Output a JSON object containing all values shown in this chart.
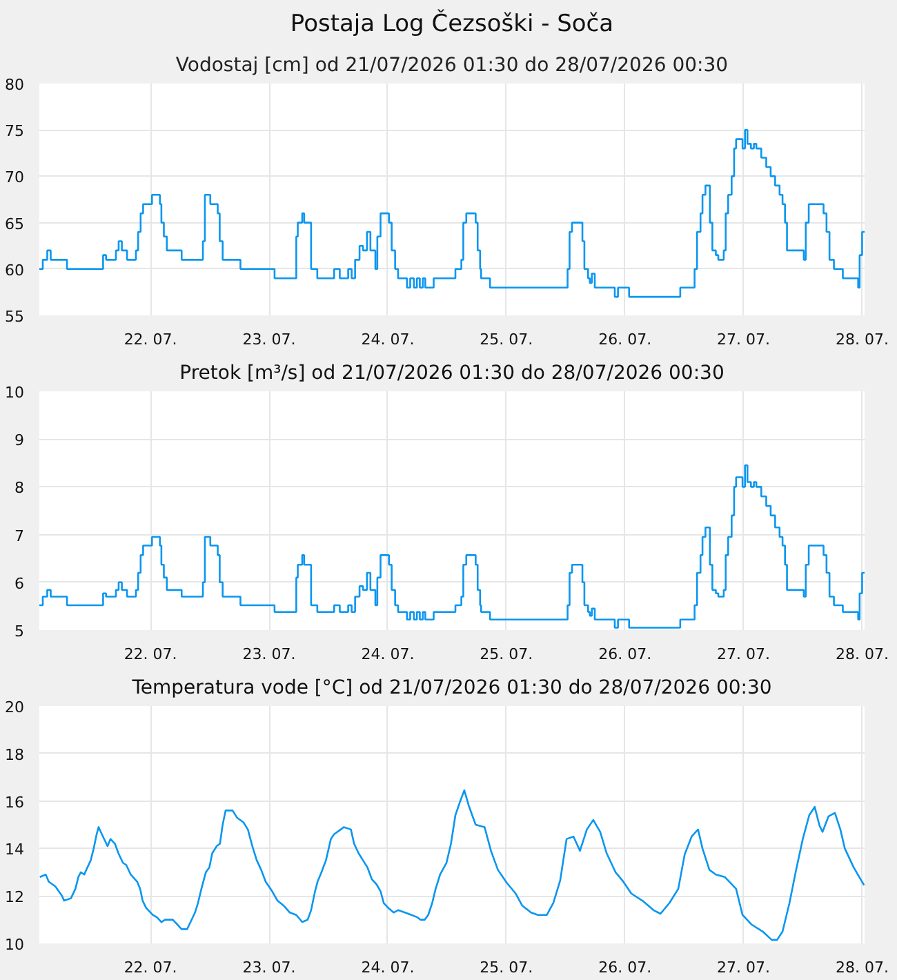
{
  "chart_data": [
    {
      "type": "step",
      "title": "Postaja Log Čezsoški - Soča",
      "subtitle": "Vodostaj [cm] od 21/07/2026 01:30 do 28/07/2026 00:30",
      "color": "#0a96f0",
      "grid": true,
      "xlim": [
        "2026-07-21T01:30",
        "2026-07-28T00:30"
      ],
      "ylim": [
        55,
        80
      ],
      "yticks": [
        55,
        60,
        65,
        70,
        75,
        80
      ],
      "xticks": [
        {
          "value": "2026-07-22",
          "label": "22. 07."
        },
        {
          "value": "2026-07-23",
          "label": "23. 07."
        },
        {
          "value": "2026-07-24",
          "label": "24. 07."
        },
        {
          "value": "2026-07-25",
          "label": "25. 07."
        },
        {
          "value": "2026-07-26",
          "label": "26. 07."
        },
        {
          "value": "2026-07-27",
          "label": "27. 07."
        },
        {
          "value": "2026-07-28",
          "label": "28. 07."
        }
      ],
      "x": [
        "2026-07-21T01:30",
        "2026-07-21T02:12",
        "2026-07-21T03:06",
        "2026-07-21T03:48",
        "2026-07-21T07:06",
        "2026-07-21T14:24",
        "2026-07-21T15:00",
        "2026-07-21T17:00",
        "2026-07-21T17:33",
        "2026-07-21T18:12",
        "2026-07-21T19:15",
        "2026-07-21T21:03",
        "2026-07-21T21:30",
        "2026-07-21T22:00",
        "2026-07-21T22:30",
        "2026-07-22T00:18",
        "2026-07-22T01:54",
        "2026-07-22T02:12",
        "2026-07-22T02:42",
        "2026-07-22T03:18",
        "2026-07-22T06:18",
        "2026-07-22T10:36",
        "2026-07-22T11:00",
        "2026-07-22T12:06",
        "2026-07-22T13:36",
        "2026-07-22T14:00",
        "2026-07-22T14:36",
        "2026-07-22T18:12",
        "2026-07-23T01:06",
        "2026-07-23T05:30",
        "2026-07-23T05:48",
        "2026-07-23T06:42",
        "2026-07-23T07:06",
        "2026-07-23T08:30",
        "2026-07-23T09:45",
        "2026-07-23T13:10",
        "2026-07-23T14:18",
        "2026-07-23T16:00",
        "2026-07-23T16:42",
        "2026-07-23T17:24",
        "2026-07-23T18:18",
        "2026-07-23T19:00",
        "2026-07-23T19:48",
        "2026-07-23T20:30",
        "2026-07-23T21:30",
        "2026-07-23T21:54",
        "2026-07-23T22:33",
        "2026-07-24T00:15",
        "2026-07-24T00:48",
        "2026-07-24T01:30",
        "2026-07-24T02:06",
        "2026-07-24T03:54",
        "2026-07-24T04:33",
        "2026-07-24T05:18",
        "2026-07-24T05:54",
        "2026-07-24T06:30",
        "2026-07-24T07:06",
        "2026-07-24T07:36",
        "2026-07-24T09:18",
        "2026-07-24T13:42",
        "2026-07-24T14:54",
        "2026-07-24T15:18",
        "2026-07-24T15:54",
        "2026-07-24T17:48",
        "2026-07-24T18:12",
        "2026-07-24T18:42",
        "2026-07-24T18:54",
        "2026-07-24T20:42",
        "2026-07-25T12:24",
        "2026-07-25T12:48",
        "2026-07-25T13:18",
        "2026-07-25T15:24",
        "2026-07-25T15:48",
        "2026-07-25T16:33",
        "2026-07-25T16:54",
        "2026-07-25T17:18",
        "2026-07-25T17:54",
        "2026-07-25T21:57",
        "2026-07-25T22:36",
        "2026-07-26T00:51",
        "2026-07-26T11:12",
        "2026-07-26T14:06",
        "2026-07-26T14:36",
        "2026-07-26T15:18",
        "2026-07-26T15:42",
        "2026-07-26T16:18",
        "2026-07-26T17:12",
        "2026-07-26T17:42",
        "2026-07-26T18:24",
        "2026-07-26T18:54",
        "2026-07-26T20:00",
        "2026-07-26T20:24",
        "2026-07-26T20:54",
        "2026-07-26T21:36",
        "2026-07-26T22:06",
        "2026-07-26T22:30",
        "2026-07-26T23:48",
        "2026-07-27T00:18",
        "2026-07-27T00:48",
        "2026-07-27T01:30",
        "2026-07-27T02:06",
        "2026-07-27T02:36",
        "2026-07-27T03:36",
        "2026-07-27T04:36",
        "2026-07-27T05:30",
        "2026-07-27T06:24",
        "2026-07-27T07:18",
        "2026-07-27T07:54",
        "2026-07-27T08:24",
        "2026-07-27T08:48",
        "2026-07-27T12:12",
        "2026-07-27T12:36",
        "2026-07-27T13:12",
        "2026-07-27T16:12",
        "2026-07-27T16:48",
        "2026-07-27T17:24",
        "2026-07-27T18:18",
        "2026-07-27T20:06",
        "2026-07-27T23:12",
        "2026-07-27T23:30",
        "2026-07-28T00:00",
        "2026-07-28T00:30"
      ],
      "values": [
        60,
        61,
        62,
        61,
        60,
        61.5,
        61,
        62,
        63,
        62,
        61,
        62,
        64,
        66,
        67,
        68,
        67,
        65,
        63.5,
        62,
        61,
        63,
        68,
        67,
        66,
        63,
        61,
        60,
        59,
        63.5,
        65,
        66,
        65,
        60,
        59,
        60,
        59,
        60,
        59,
        61,
        62.5,
        62,
        64,
        62,
        60,
        63.5,
        66,
        65,
        62,
        60,
        59,
        58,
        59,
        58,
        59,
        58,
        59,
        58,
        59,
        60,
        61,
        65,
        66,
        65,
        62,
        60,
        59,
        58,
        60,
        64,
        65,
        63,
        60,
        59,
        58.5,
        59.5,
        58,
        57,
        58,
        57,
        58,
        60,
        64,
        66,
        68,
        69,
        65,
        62,
        61.5,
        61,
        62,
        66,
        68,
        70,
        73,
        74,
        73,
        75,
        73.5,
        73,
        73.5,
        73,
        72,
        71,
        70,
        69,
        68,
        67,
        65,
        62,
        61,
        65,
        67,
        66,
        64,
        61,
        60,
        59,
        58,
        61.5,
        64,
        64
      ]
    },
    {
      "type": "step",
      "title": "Pretok [m³/s] od 21/07/2026 01:30 do 28/07/2026 00:30",
      "color": "#0a96f0",
      "grid": true,
      "xlim": [
        "2026-07-21T01:30",
        "2026-07-28T00:30"
      ],
      "ylim": [
        5,
        10
      ],
      "yticks": [
        5,
        6,
        7,
        8,
        9,
        10
      ],
      "xticks": [
        {
          "value": "2026-07-22",
          "label": "22. 07."
        },
        {
          "value": "2026-07-23",
          "label": "23. 07."
        },
        {
          "value": "2026-07-24",
          "label": "24. 07."
        },
        {
          "value": "2026-07-25",
          "label": "25. 07."
        },
        {
          "value": "2026-07-26",
          "label": "26. 07."
        },
        {
          "value": "2026-07-27",
          "label": "27. 07."
        },
        {
          "value": "2026-07-28",
          "label": "28. 07."
        }
      ],
      "x": [
        "2026-07-21T01:30",
        "2026-07-21T02:12",
        "2026-07-21T03:06",
        "2026-07-21T03:48",
        "2026-07-21T07:06",
        "2026-07-21T14:24",
        "2026-07-21T15:00",
        "2026-07-21T17:00",
        "2026-07-21T17:33",
        "2026-07-21T18:12",
        "2026-07-21T19:15",
        "2026-07-21T21:03",
        "2026-07-21T21:30",
        "2026-07-21T22:00",
        "2026-07-21T22:30",
        "2026-07-22T00:18",
        "2026-07-22T01:54",
        "2026-07-22T02:12",
        "2026-07-22T02:42",
        "2026-07-22T03:18",
        "2026-07-22T06:18",
        "2026-07-22T10:36",
        "2026-07-22T11:00",
        "2026-07-22T12:06",
        "2026-07-22T13:36",
        "2026-07-22T14:00",
        "2026-07-22T14:36",
        "2026-07-22T18:12",
        "2026-07-23T01:06",
        "2026-07-23T05:30",
        "2026-07-23T05:48",
        "2026-07-23T06:42",
        "2026-07-23T07:06",
        "2026-07-23T08:30",
        "2026-07-23T09:45",
        "2026-07-23T13:10",
        "2026-07-23T14:18",
        "2026-07-23T16:00",
        "2026-07-23T16:42",
        "2026-07-23T17:24",
        "2026-07-23T18:18",
        "2026-07-23T19:00",
        "2026-07-23T19:48",
        "2026-07-23T20:30",
        "2026-07-23T21:30",
        "2026-07-23T21:54",
        "2026-07-23T22:33",
        "2026-07-24T00:15",
        "2026-07-24T00:48",
        "2026-07-24T01:30",
        "2026-07-24T02:06",
        "2026-07-24T03:54",
        "2026-07-24T04:33",
        "2026-07-24T05:18",
        "2026-07-24T05:54",
        "2026-07-24T06:30",
        "2026-07-24T07:06",
        "2026-07-24T07:36",
        "2026-07-24T09:18",
        "2026-07-24T13:42",
        "2026-07-24T14:54",
        "2026-07-24T15:18",
        "2026-07-24T15:54",
        "2026-07-24T17:48",
        "2026-07-24T18:12",
        "2026-07-24T18:42",
        "2026-07-24T18:54",
        "2026-07-24T20:42",
        "2026-07-25T12:24",
        "2026-07-25T12:48",
        "2026-07-25T13:18",
        "2026-07-25T15:24",
        "2026-07-25T15:48",
        "2026-07-25T16:33",
        "2026-07-25T16:54",
        "2026-07-25T17:18",
        "2026-07-25T17:54",
        "2026-07-25T21:57",
        "2026-07-25T22:36",
        "2026-07-26T00:51",
        "2026-07-26T11:12",
        "2026-07-26T14:06",
        "2026-07-26T14:36",
        "2026-07-26T15:18",
        "2026-07-26T15:42",
        "2026-07-26T16:18",
        "2026-07-26T17:12",
        "2026-07-26T17:42",
        "2026-07-26T18:24",
        "2026-07-26T18:54",
        "2026-07-26T20:00",
        "2026-07-26T20:24",
        "2026-07-26T20:54",
        "2026-07-26T21:36",
        "2026-07-26T22:06",
        "2026-07-26T22:30",
        "2026-07-26T23:48",
        "2026-07-27T00:18",
        "2026-07-27T00:48",
        "2026-07-27T01:30",
        "2026-07-27T02:06",
        "2026-07-27T02:36",
        "2026-07-27T03:36",
        "2026-07-27T04:36",
        "2026-07-27T05:30",
        "2026-07-27T06:24",
        "2026-07-27T07:18",
        "2026-07-27T07:54",
        "2026-07-27T08:24",
        "2026-07-27T08:48",
        "2026-07-27T12:12",
        "2026-07-27T12:36",
        "2026-07-27T13:12",
        "2026-07-27T16:12",
        "2026-07-27T16:48",
        "2026-07-27T17:24",
        "2026-07-27T18:18",
        "2026-07-27T20:06",
        "2026-07-27T23:12",
        "2026-07-27T23:30",
        "2026-07-28T00:00",
        "2026-07-28T00:30"
      ],
      "values": [
        5.52,
        5.7,
        5.84,
        5.7,
        5.52,
        5.77,
        5.7,
        5.84,
        6.0,
        5.84,
        5.7,
        5.84,
        6.2,
        6.57,
        6.77,
        6.95,
        6.77,
        6.37,
        6.1,
        5.84,
        5.7,
        6.0,
        6.95,
        6.77,
        6.57,
        6.0,
        5.7,
        5.52,
        5.38,
        6.1,
        6.37,
        6.57,
        6.37,
        5.52,
        5.38,
        5.52,
        5.38,
        5.52,
        5.38,
        5.7,
        5.92,
        5.84,
        6.2,
        5.84,
        5.52,
        6.1,
        6.57,
        6.37,
        5.84,
        5.52,
        5.38,
        5.22,
        5.38,
        5.22,
        5.38,
        5.22,
        5.38,
        5.22,
        5.38,
        5.52,
        5.7,
        6.37,
        6.57,
        6.37,
        5.84,
        5.52,
        5.38,
        5.22,
        5.52,
        6.2,
        6.37,
        6.0,
        5.52,
        5.38,
        5.3,
        5.45,
        5.22,
        5.05,
        5.22,
        5.05,
        5.22,
        5.52,
        6.2,
        6.57,
        6.95,
        7.15,
        6.37,
        5.84,
        5.77,
        5.7,
        5.84,
        6.57,
        6.95,
        7.4,
        8.0,
        8.2,
        8.0,
        8.45,
        8.1,
        8.0,
        8.1,
        8.0,
        7.8,
        7.6,
        7.4,
        7.15,
        6.95,
        6.77,
        6.37,
        5.84,
        5.7,
        6.37,
        6.77,
        6.57,
        6.2,
        5.7,
        5.52,
        5.38,
        5.22,
        5.77,
        6.2,
        6.2
      ]
    },
    {
      "type": "line",
      "title": "Temperatura vode [°C] od 21/07/2026 01:30 do 28/07/2026 00:30",
      "color": "#0a96f0",
      "grid": true,
      "xlim": [
        "2026-07-21T01:30",
        "2026-07-28T00:30"
      ],
      "ylim": [
        10,
        20
      ],
      "yticks": [
        10,
        12,
        14,
        16,
        18,
        20
      ],
      "xticks": [
        {
          "value": "2026-07-22",
          "label": "22. 07."
        },
        {
          "value": "2026-07-23",
          "label": "23. 07."
        },
        {
          "value": "2026-07-24",
          "label": "24. 07."
        },
        {
          "value": "2026-07-25",
          "label": "25. 07."
        },
        {
          "value": "2026-07-26",
          "label": "26. 07."
        },
        {
          "value": "2026-07-27",
          "label": "27. 07."
        },
        {
          "value": "2026-07-28",
          "label": "28. 07."
        }
      ],
      "x": [
        "2026-07-21T01:36",
        "2026-07-21T02:48",
        "2026-07-21T03:24",
        "2026-07-21T04:45",
        "2026-07-21T06:06",
        "2026-07-21T06:30",
        "2026-07-21T07:54",
        "2026-07-21T08:48",
        "2026-07-21T09:24",
        "2026-07-21T09:54",
        "2026-07-21T10:36",
        "2026-07-21T11:00",
        "2026-07-21T11:54",
        "2026-07-21T12:30",
        "2026-07-21T13:06",
        "2026-07-21T13:30",
        "2026-07-21T14:09",
        "2026-07-21T15:18",
        "2026-07-21T15:54",
        "2026-07-21T16:48",
        "2026-07-21T17:30",
        "2026-07-21T18:24",
        "2026-07-21T19:06",
        "2026-07-21T20:00",
        "2026-07-21T21:18",
        "2026-07-21T21:54",
        "2026-07-21T22:24",
        "2026-07-21T23:06",
        "2026-07-22T00:27",
        "2026-07-22T01:18",
        "2026-07-22T02:12",
        "2026-07-22T02:57",
        "2026-07-22T04:30",
        "2026-07-22T05:24",
        "2026-07-22T06:18",
        "2026-07-22T07:24",
        "2026-07-22T08:06",
        "2026-07-22T09:00",
        "2026-07-22T09:36",
        "2026-07-22T10:18",
        "2026-07-22T11:12",
        "2026-07-22T11:54",
        "2026-07-22T12:30",
        "2026-07-22T13:24",
        "2026-07-22T14:03",
        "2026-07-22T14:36",
        "2026-07-22T15:12",
        "2026-07-22T16:36",
        "2026-07-22T17:30",
        "2026-07-22T18:48",
        "2026-07-22T19:42",
        "2026-07-22T20:36",
        "2026-07-22T21:30",
        "2026-07-22T22:24",
        "2026-07-22T23:18",
        "2026-07-23T00:36",
        "2026-07-23T01:42",
        "2026-07-23T02:54",
        "2026-07-23T04:12",
        "2026-07-23T05:30",
        "2026-07-23T06:42",
        "2026-07-23T07:48",
        "2026-07-23T08:30",
        "2026-07-23T09:18",
        "2026-07-23T09:48",
        "2026-07-23T10:36",
        "2026-07-23T11:30",
        "2026-07-23T12:30",
        "2026-07-23T13:09",
        "2026-07-23T14:30",
        "2026-07-23T15:06",
        "2026-07-23T16:33",
        "2026-07-23T17:12",
        "2026-07-23T18:06",
        "2026-07-23T19:00",
        "2026-07-23T19:54",
        "2026-07-23T20:48",
        "2026-07-23T21:42",
        "2026-07-23T22:33",
        "2026-07-23T23:12",
        "2026-07-24T00:06",
        "2026-07-24T01:12",
        "2026-07-24T02:06",
        "2026-07-24T03:30",
        "2026-07-24T04:48",
        "2026-07-24T06:00",
        "2026-07-24T06:36",
        "2026-07-24T07:30",
        "2026-07-24T08:12",
        "2026-07-24T09:00",
        "2026-07-24T09:42",
        "2026-07-24T10:36",
        "2026-07-24T11:54",
        "2026-07-24T12:48",
        "2026-07-24T13:42",
        "2026-07-24T14:36",
        "2026-07-24T15:30",
        "2026-07-24T16:24",
        "2026-07-24T17:48",
        "2026-07-24T19:36",
        "2026-07-24T20:54",
        "2026-07-24T22:18",
        "2026-07-25T00:06",
        "2026-07-25T01:54",
        "2026-07-25T03:12",
        "2026-07-25T05:00",
        "2026-07-25T06:24",
        "2026-07-25T08:12",
        "2026-07-25T09:30",
        "2026-07-25T10:54",
        "2026-07-25T12:12",
        "2026-07-25T13:36",
        "2026-07-25T14:54",
        "2026-07-25T16:18",
        "2026-07-25T17:36",
        "2026-07-25T19:00",
        "2026-07-25T20:18",
        "2026-07-25T22:06",
        "2026-07-25T23:30",
        "2026-07-26T01:18",
        "2026-07-26T03:33",
        "2026-07-26T05:48",
        "2026-07-26T07:12",
        "2026-07-26T09:00",
        "2026-07-26T10:48",
        "2026-07-26T12:06",
        "2026-07-26T13:30",
        "2026-07-26T14:48",
        "2026-07-26T15:42",
        "2026-07-26T17:06",
        "2026-07-26T18:24",
        "2026-07-26T20:12",
        "2026-07-26T22:30",
        "2026-07-26T23:48",
        "2026-07-27T01:36",
        "2026-07-27T03:54",
        "2026-07-27T05:42",
        "2026-07-27T06:48",
        "2026-07-27T07:54",
        "2026-07-27T09:18",
        "2026-07-27T10:36",
        "2026-07-27T12:00",
        "2026-07-27T13:18",
        "2026-07-27T14:24",
        "2026-07-27T15:24",
        "2026-07-27T16:00",
        "2026-07-27T17:12",
        "2026-07-27T18:30",
        "2026-07-27T19:36",
        "2026-07-27T20:30",
        "2026-07-27T22:18",
        "2026-07-27T23:42",
        "2026-07-28T00:24"
      ],
      "values": [
        12.8,
        12.9,
        12.6,
        12.4,
        12.0,
        11.8,
        11.9,
        12.3,
        12.8,
        13.0,
        12.9,
        13.1,
        13.5,
        14.0,
        14.6,
        14.9,
        14.6,
        14.1,
        14.4,
        14.2,
        13.8,
        13.4,
        13.3,
        12.9,
        12.6,
        12.3,
        11.8,
        11.5,
        11.2,
        11.1,
        10.9,
        11.0,
        11.0,
        10.8,
        10.6,
        10.6,
        10.9,
        11.3,
        11.7,
        12.3,
        13.0,
        13.2,
        13.8,
        14.1,
        14.2,
        15.0,
        15.6,
        15.6,
        15.3,
        15.1,
        14.8,
        14.1,
        13.5,
        13.1,
        12.6,
        12.2,
        11.8,
        11.6,
        11.3,
        11.2,
        10.9,
        11.0,
        11.4,
        12.2,
        12.6,
        13.0,
        13.5,
        14.4,
        14.6,
        14.8,
        14.9,
        14.8,
        14.2,
        13.8,
        13.5,
        13.2,
        12.7,
        12.5,
        12.2,
        11.7,
        11.5,
        11.3,
        11.4,
        11.3,
        11.2,
        11.1,
        11.0,
        11.0,
        11.2,
        11.7,
        12.3,
        12.9,
        13.4,
        14.2,
        15.4,
        15.95,
        16.45,
        15.8,
        15.0,
        14.9,
        13.9,
        13.1,
        12.55,
        12.1,
        11.6,
        11.3,
        11.2,
        11.2,
        11.7,
        12.65,
        14.4,
        14.5,
        13.9,
        14.8,
        15.2,
        14.7,
        13.8,
        13.0,
        12.65,
        12.1,
        11.8,
        11.4,
        11.25,
        11.7,
        12.3,
        13.75,
        14.5,
        14.8,
        14.0,
        13.1,
        12.9,
        12.8,
        12.3,
        11.2,
        10.8,
        10.5,
        10.15,
        10.15,
        10.5,
        11.7,
        13.05,
        14.4,
        15.4,
        15.75,
        14.95,
        14.7,
        15.35,
        15.5,
        14.8,
        14.0,
        13.2,
        12.7,
        12.45
      ]
    }
  ]
}
